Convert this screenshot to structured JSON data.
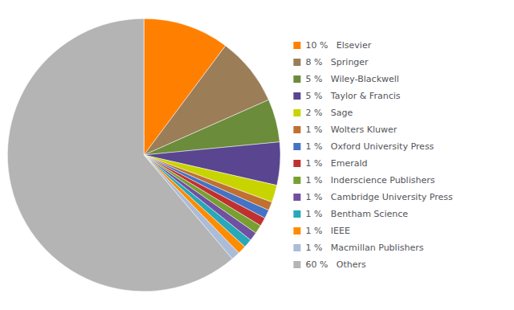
{
  "chart_data": {
    "type": "pie",
    "categories": [
      "10 %   Elsevier",
      "8 %   Springer",
      "5 %   Wiley-Blackwell",
      "5 %   Taylor & Francis",
      "2 %   Sage",
      "1 %   Wolters Kluwer",
      "1 %   Oxford University Press",
      "1 %   Emerald",
      "1 %   Inderscience Publishers",
      "1 %   Cambridge University Press",
      "1 %   Bentham Science",
      "1 %   IEEE",
      "1 %   Macmillan Publishers",
      "60 %   Others"
    ],
    "values": [
      10,
      8,
      5,
      5,
      2,
      1,
      1,
      1,
      1,
      1,
      1,
      1,
      1,
      60
    ],
    "colors": [
      "#FF8000",
      "#9B7D58",
      "#6B8C3A",
      "#5A4590",
      "#C8D400",
      "#C07030",
      "#4472C4",
      "#C03030",
      "#78A030",
      "#7050A0",
      "#28A8B8",
      "#FF8C00",
      "#AABCD8",
      "#B4B4B4"
    ],
    "legend": "right"
  }
}
